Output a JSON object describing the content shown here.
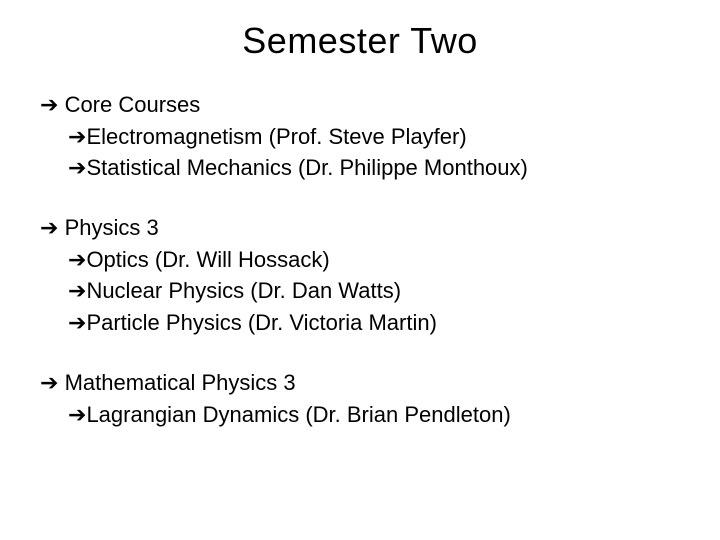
{
  "title": "Semester Two",
  "bullet_glyph": "➔",
  "text_color": "#000000",
  "background_color": "#ffffff",
  "title_fontsize": 36,
  "body_fontsize": 22,
  "sections": [
    {
      "heading": "Core Courses",
      "items": [
        "Electromagnetism (Prof. Steve Playfer)",
        "Statistical Mechanics  (Dr. Philippe Monthoux)"
      ]
    },
    {
      "heading": "Physics 3",
      "items": [
        "Optics  (Dr. Will Hossack)",
        "Nuclear Physics (Dr. Dan Watts)",
        "Particle Physics (Dr. Victoria Martin)"
      ]
    },
    {
      "heading": "Mathematical Physics 3",
      "items": [
        "Lagrangian Dynamics (Dr. Brian Pendleton)"
      ]
    }
  ]
}
